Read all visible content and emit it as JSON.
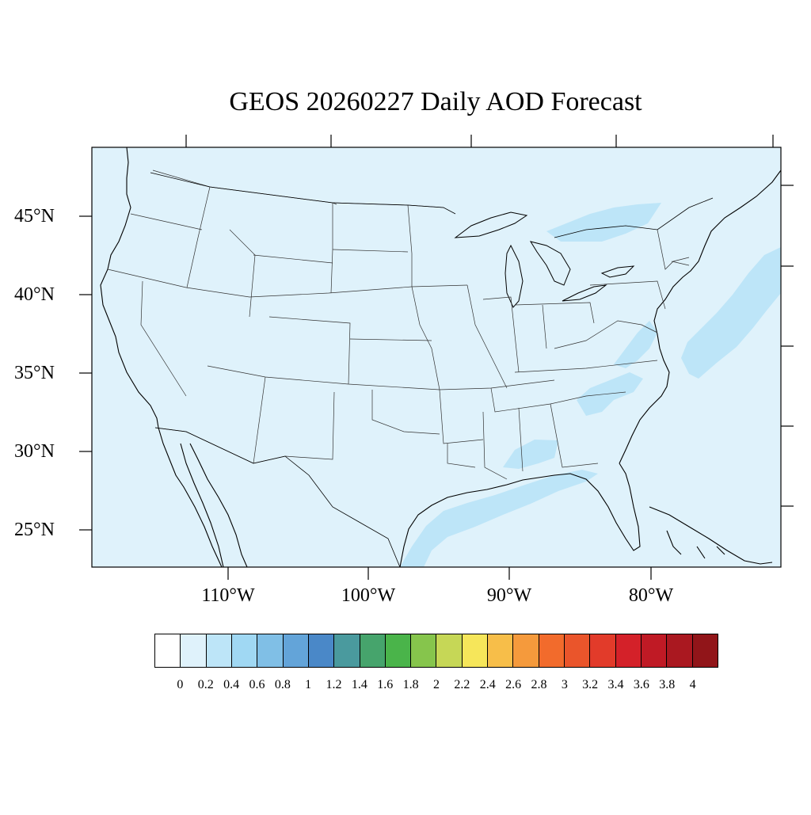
{
  "title": "GEOS 20260227 Daily AOD Forecast",
  "map": {
    "background_color": "#dff2fb",
    "plume_color": "#bde5f8",
    "lat_labels": [
      "45°N",
      "40°N",
      "35°N",
      "30°N",
      "25°N"
    ],
    "lon_labels": [
      "110°W",
      "100°W",
      "90°W",
      "80°W"
    ]
  },
  "colorbar": {
    "colors": [
      "#ffffff",
      "#dff2fb",
      "#bde5f8",
      "#a0d8f3",
      "#80bfe6",
      "#63a4d9",
      "#4a88c8",
      "#4a9a9e",
      "#46a46c",
      "#4ab44a",
      "#86c54c",
      "#c6d756",
      "#f6e65a",
      "#f7be49",
      "#f59a3c",
      "#f26b2c",
      "#ea552b",
      "#e23b2a",
      "#d42129",
      "#c01a25",
      "#aa1820",
      "#911519"
    ],
    "labels": [
      "0",
      "0.2",
      "0.4",
      "0.6",
      "0.8",
      "1",
      "1.2",
      "1.4",
      "1.6",
      "1.8",
      "2",
      "2.2",
      "2.4",
      "2.6",
      "2.8",
      "3",
      "3.2",
      "3.4",
      "3.6",
      "3.8",
      "4"
    ]
  }
}
